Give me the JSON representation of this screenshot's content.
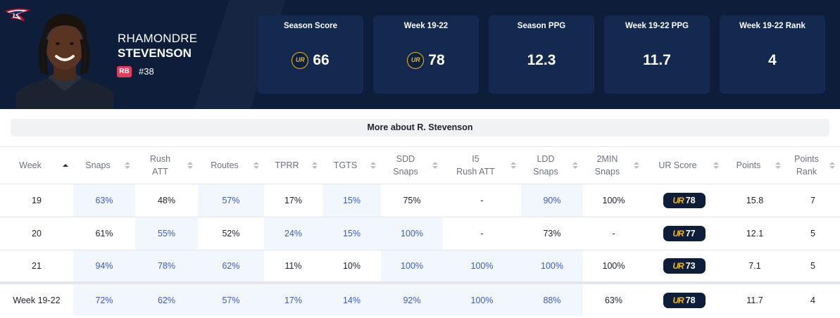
{
  "player": {
    "first_name": "RHAMONDRE",
    "last_name": "STEVENSON",
    "position": "RB",
    "jersey": "#38",
    "team_logo": "patriots-logo",
    "more_label": "More about R. Stevenson"
  },
  "colors": {
    "header_bg": "#0d1d3a",
    "card_bg": "#13294f",
    "ur_gold": "#f2b705",
    "position_badge": "#e23b5c",
    "highlight_cell": "#f2f6fd",
    "highlight_text": "#3b5cc6"
  },
  "stats": [
    {
      "label": "Season Score",
      "value": "66",
      "ur_icon": true
    },
    {
      "label": "Week 19-22",
      "value": "78",
      "ur_icon": true
    },
    {
      "label": "Season PPG",
      "value": "12.3",
      "ur_icon": false
    },
    {
      "label": "Week 19-22 PPG",
      "value": "11.7",
      "ur_icon": false
    },
    {
      "label": "Week 19-22 Rank",
      "value": "4",
      "ur_icon": false
    }
  ],
  "ur_icon_text": "UR",
  "table": {
    "columns": [
      {
        "line1": "Week",
        "line2": "",
        "sort": "asc"
      },
      {
        "line1": "Snaps",
        "line2": "",
        "sort": "none"
      },
      {
        "line1": "Rush",
        "line2": "ATT",
        "sort": "none"
      },
      {
        "line1": "Routes",
        "line2": "",
        "sort": "none"
      },
      {
        "line1": "TPRR",
        "line2": "",
        "sort": "none"
      },
      {
        "line1": "TGTS",
        "line2": "",
        "sort": "none"
      },
      {
        "line1": "SDD",
        "line2": "Snaps",
        "sort": "none"
      },
      {
        "line1": "I5",
        "line2": "Rush ATT",
        "sort": "none"
      },
      {
        "line1": "LDD",
        "line2": "Snaps",
        "sort": "none"
      },
      {
        "line1": "2MIN",
        "line2": "Snaps",
        "sort": "none"
      },
      {
        "line1": "UR Score",
        "line2": "",
        "sort": "none"
      },
      {
        "line1": "Points",
        "line2": "",
        "sort": "none"
      },
      {
        "line1": "Points",
        "line2": "Rank",
        "sort": "none"
      }
    ],
    "rows": [
      {
        "cells": [
          "19",
          "63%",
          "48%",
          "57%",
          "17%",
          "15%",
          "75%",
          "-",
          "90%",
          "100%",
          "78",
          "15.8",
          "7"
        ],
        "hl": [
          false,
          true,
          false,
          true,
          false,
          true,
          false,
          false,
          true,
          false,
          false,
          false,
          false
        ]
      },
      {
        "cells": [
          "20",
          "61%",
          "55%",
          "52%",
          "24%",
          "15%",
          "100%",
          "-",
          "73%",
          "-",
          "77",
          "12.1",
          "5"
        ],
        "hl": [
          false,
          false,
          true,
          false,
          true,
          true,
          true,
          false,
          false,
          false,
          false,
          false,
          false
        ]
      },
      {
        "cells": [
          "21",
          "94%",
          "78%",
          "62%",
          "11%",
          "10%",
          "100%",
          "100%",
          "100%",
          "100%",
          "73",
          "7.1",
          "5"
        ],
        "hl": [
          false,
          true,
          true,
          true,
          false,
          false,
          true,
          true,
          true,
          false,
          false,
          false,
          false
        ]
      }
    ],
    "total": {
      "cells": [
        "Week 19-22",
        "72%",
        "62%",
        "57%",
        "17%",
        "14%",
        "92%",
        "100%",
        "88%",
        "63%",
        "78",
        "11.7",
        "4"
      ],
      "hl": [
        false,
        true,
        true,
        true,
        true,
        true,
        true,
        true,
        true,
        false,
        false,
        false,
        false
      ]
    }
  }
}
